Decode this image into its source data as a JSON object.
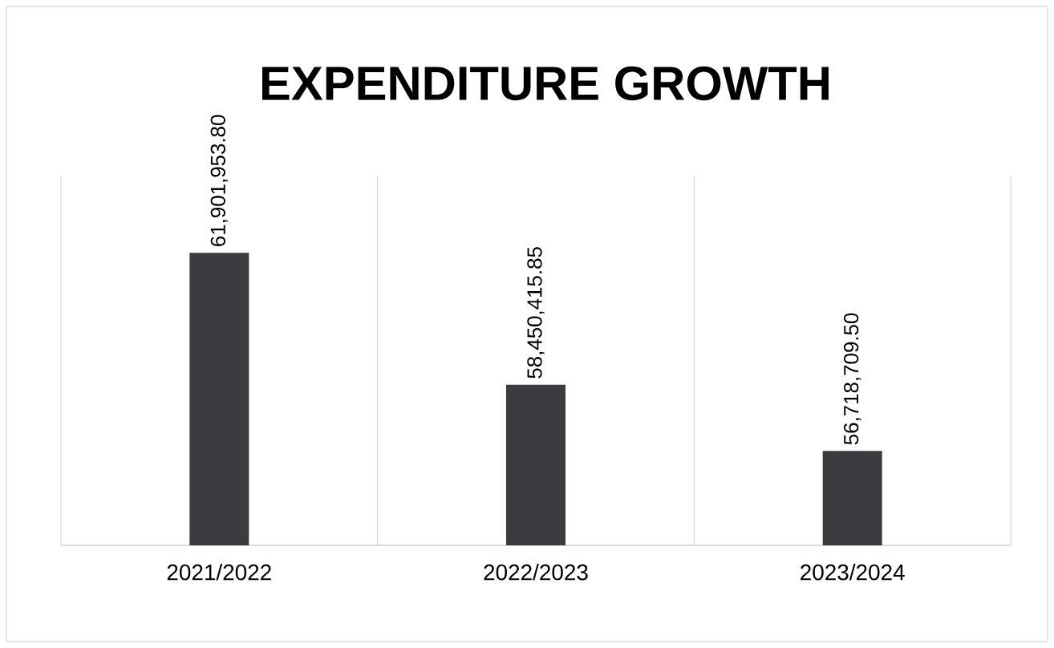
{
  "chart_data": {
    "type": "bar",
    "title": "EXPENDITURE GROWTH",
    "categories": [
      "2021/2022",
      "2022/2023",
      "2023/2024"
    ],
    "values": [
      61901953.8,
      58450415.85,
      56718709.5
    ],
    "value_labels": [
      "61,901,953.80",
      "58,450,415.85",
      "56,718,709.50"
    ],
    "color": "#3b3b40",
    "ylim": [
      54250000,
      63900000
    ],
    "tick_labels": "x",
    "grid": "x"
  }
}
